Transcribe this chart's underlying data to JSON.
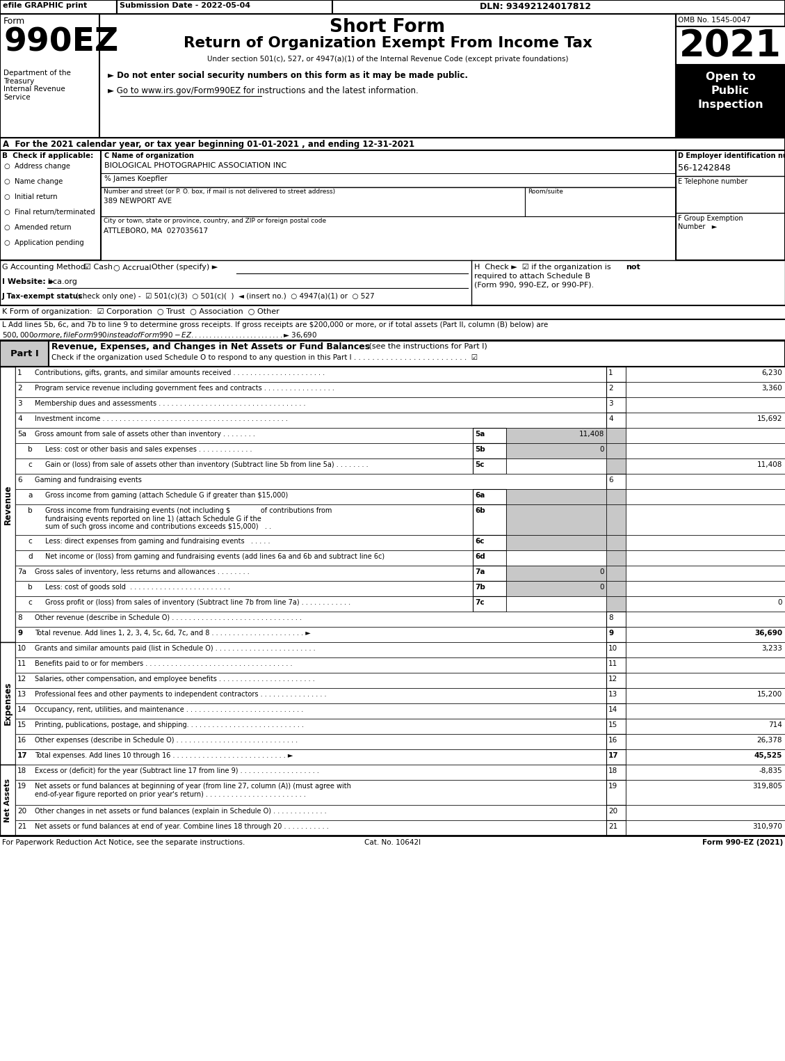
{
  "efile_text": "efile GRAPHIC print",
  "submission_date": "Submission Date - 2022-05-04",
  "dln": "DLN: 93492124017812",
  "form_number": "990EZ",
  "year": "2021",
  "omb": "OMB No. 1545-0047",
  "title": "Short Form",
  "subtitle": "Return of Organization Exempt From Income Tax",
  "under_section": "Under section 501(c), 527, or 4947(a)(1) of the Internal Revenue Code (except private foundations)",
  "bullet1": "► Do not enter social security numbers on this form as it may be made public.",
  "bullet2": "► Go to www.irs.gov/Form990EZ for instructions and the latest information.",
  "bullet2_underline_start": "www.irs.gov/Form990EZ",
  "open_to_public": "Open to\nPublic\nInspection",
  "dept_text": "Department of the\nTreasury\nInternal Revenue\nService",
  "form_label": "Form",
  "section_a": "A  For the 2021 calendar year, or tax year beginning 01-01-2021 , and ending 12-31-2021",
  "checkboxes_b": [
    "Address change",
    "Name change",
    "Initial return",
    "Final return/terminated",
    "Amended return",
    "Application pending"
  ],
  "org_name": "BIOLOGICAL PHOTOGRAPHIC ASSOCIATION INC",
  "care_of": "% James Koepfler",
  "street_label": "Number and street (or P. O. box, if mail is not delivered to street address)",
  "street": "389 NEWPORT AVE",
  "room_label": "Room/suite",
  "city_label": "City or town, state or province, country, and ZIP or foreign postal code",
  "city": "ATTLEBORO, MA  027035617",
  "ein": "56-1242848",
  "footer_left": "For Paperwork Reduction Act Notice, see the separate instructions.",
  "footer_cat": "Cat. No. 10642I",
  "footer_right": "Form 990-EZ (2021)",
  "gray_bg": "#c8c8c8",
  "part_header_bg": "#c8c8c8"
}
